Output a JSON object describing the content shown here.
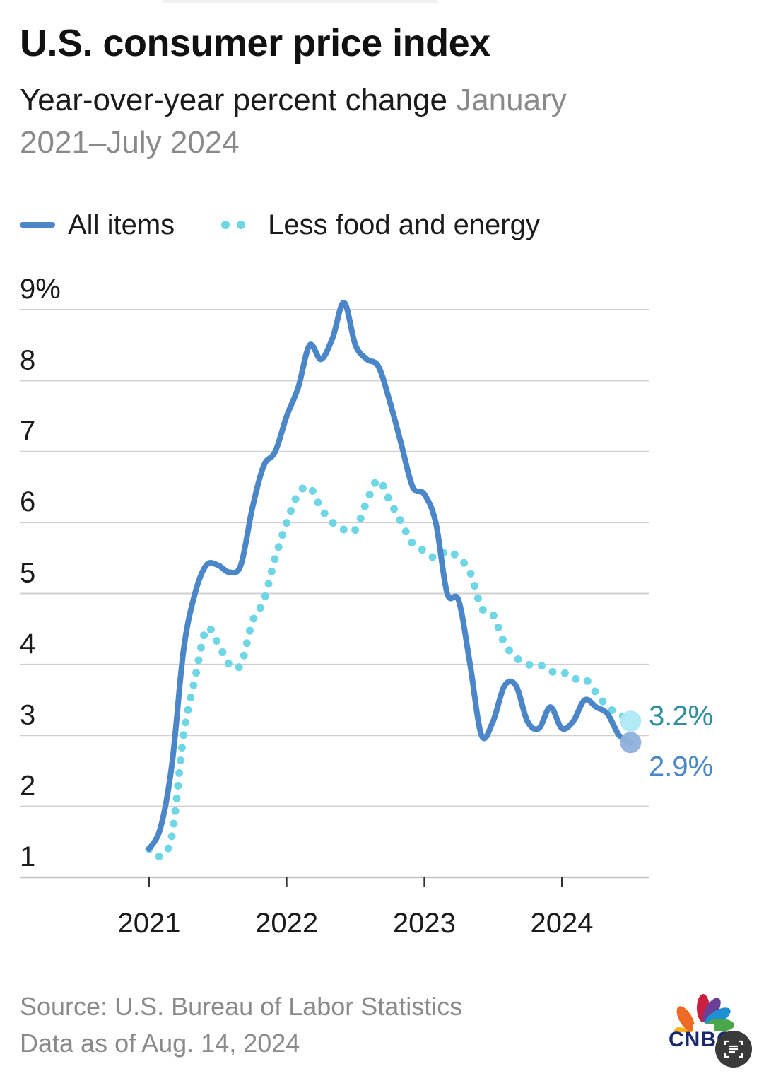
{
  "header": {
    "title": "U.S. consumer price index",
    "subtitle_main": "Year-over-year percent change",
    "subtitle_range": "January 2021–July 2024"
  },
  "legend": {
    "all_items": "All items",
    "core": "Less food and energy"
  },
  "footer": {
    "source": "Source: U.S. Bureau of Labor Statistics",
    "data_as_of": "Data as of Aug. 14, 2024",
    "logo_text": "CNBC"
  },
  "colors": {
    "all_items": "#4a86c8",
    "core": "#6fd6e6",
    "core_end_label": "#2f8e9e",
    "all_items_end_label": "#4a86c8",
    "grid": "#d0d0d0",
    "axis": "#c4c4c4"
  },
  "chart_data": {
    "type": "line",
    "title": "U.S. consumer price index",
    "subtitle": "Year-over-year percent change January 2021–July 2024",
    "xlabel": "",
    "ylabel": "",
    "x_start": "2021-01",
    "x_ticks": [
      "2021",
      "2022",
      "2023",
      "2024"
    ],
    "x_tick_months": [
      0,
      12,
      24,
      36
    ],
    "ylim": [
      1,
      9
    ],
    "y_ticks": [
      1,
      2,
      3,
      4,
      5,
      6,
      7,
      8,
      9
    ],
    "y_tick_labels": [
      "1",
      "2",
      "3",
      "4",
      "5",
      "6",
      "7",
      "8",
      "9%"
    ],
    "grid": true,
    "legend_position": "top-left",
    "series": [
      {
        "name": "All items",
        "style": "solid",
        "values": [
          1.4,
          1.7,
          2.6,
          4.2,
          5.0,
          5.4,
          5.4,
          5.3,
          5.4,
          6.2,
          6.8,
          7.0,
          7.5,
          7.9,
          8.5,
          8.3,
          8.6,
          9.1,
          8.5,
          8.3,
          8.2,
          7.7,
          7.1,
          6.5,
          6.4,
          6.0,
          5.0,
          4.9,
          4.0,
          3.0,
          3.2,
          3.7,
          3.7,
          3.2,
          3.1,
          3.4,
          3.1,
          3.2,
          3.5,
          3.4,
          3.3,
          3.0,
          2.9
        ],
        "end_label": "2.9%"
      },
      {
        "name": "Less food and energy",
        "style": "dotted",
        "values": [
          1.4,
          1.3,
          1.6,
          3.0,
          3.8,
          4.5,
          4.3,
          4.0,
          4.0,
          4.6,
          4.9,
          5.5,
          6.0,
          6.4,
          6.5,
          6.2,
          6.0,
          5.9,
          5.9,
          6.3,
          6.6,
          6.3,
          6.0,
          5.7,
          5.6,
          5.5,
          5.6,
          5.5,
          5.3,
          4.8,
          4.7,
          4.3,
          4.1,
          4.0,
          4.0,
          3.9,
          3.9,
          3.8,
          3.8,
          3.6,
          3.4,
          3.3,
          3.2
        ],
        "end_label": "3.2%"
      }
    ]
  }
}
